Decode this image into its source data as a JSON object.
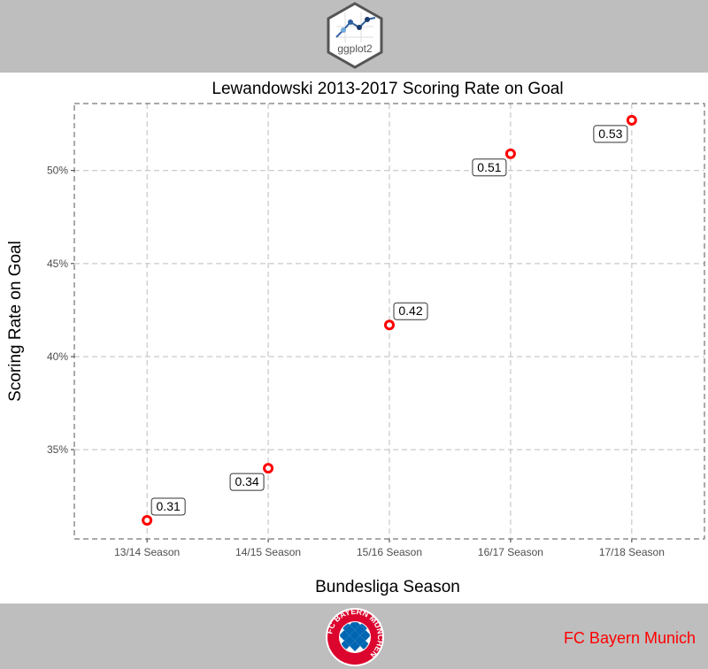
{
  "header": {
    "logo_text": "ggplot2",
    "logo_icon": "ggplot2-hex-logo-icon"
  },
  "footer": {
    "text": "FC Bayern Munich",
    "text_color": "#ff0000",
    "crest_text": "FC BAYERN MÜNCHEN",
    "crest_icon": "fc-bayern-crest-icon",
    "band_color": "#bebebe"
  },
  "chart_data": {
    "type": "scatter",
    "title": "Lewandowski 2013-2017 Scoring Rate on Goal",
    "xlabel": "Bundesliga Season",
    "ylabel": "Scoring Rate on Goal",
    "categories": [
      "13/14 Season",
      "14/15 Season",
      "15/16 Season",
      "16/17 Season",
      "17/18 Season"
    ],
    "values": [
      0.312,
      0.34,
      0.417,
      0.509,
      0.527
    ],
    "labels": [
      "0.31",
      "0.34",
      "0.42",
      "0.51",
      "0.53"
    ],
    "yticks": [
      0.35,
      0.4,
      0.45,
      0.5
    ],
    "ytick_labels": [
      "35%",
      "40%",
      "45%",
      "50%"
    ],
    "ylim": [
      0.302,
      0.536
    ],
    "grid": true,
    "legend": "none",
    "point_color": "#ff0000"
  }
}
